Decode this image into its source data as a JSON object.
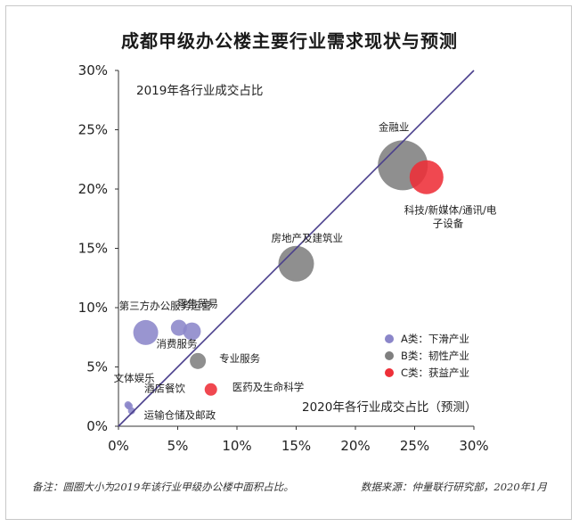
{
  "title": "成都甲级办公楼主要行业需求现状与预测",
  "chart_data": {
    "type": "scatter",
    "subtype": "bubble",
    "xlabel": "2020年各行业成交占比（预测）",
    "ylabel": "2019年各行业成交占比",
    "xlim": [
      0,
      30
    ],
    "ylim": [
      0,
      30
    ],
    "x_ticks": [
      "0%",
      "5%",
      "10%",
      "15%",
      "20%",
      "25%",
      "30%"
    ],
    "y_ticks": [
      "0%",
      "5%",
      "10%",
      "15%",
      "20%",
      "25%",
      "30%"
    ],
    "grid": false,
    "diagonal_line": true,
    "legend_position": "bottom-right",
    "series": [
      {
        "name": "A类：下滑产业",
        "color": "#8b86c9"
      },
      {
        "name": "B类：韧性产业",
        "color": "#7f7f7f"
      },
      {
        "name": "C类：获益产业",
        "color": "#ee2f38"
      }
    ],
    "points": [
      {
        "label": "金融业",
        "x": 24.0,
        "y": 22.0,
        "size": 28,
        "category": 1
      },
      {
        "label": "科技/新媒体/通讯/电子设备",
        "label_lines": [
          "科技/新媒体/通讯/电",
          "子设备"
        ],
        "x": 26.0,
        "y": 21.0,
        "size": 19,
        "category": 2
      },
      {
        "label": "房地产及建筑业",
        "x": 15.0,
        "y": 13.7,
        "size": 20,
        "category": 1
      },
      {
        "label": "第三方办公服务运营",
        "x": 2.3,
        "y": 7.9,
        "size": 14,
        "category": 0
      },
      {
        "label": "零售贸易",
        "x": 5.1,
        "y": 8.3,
        "size": 9,
        "category": 0
      },
      {
        "label": "消费服务",
        "x": 6.2,
        "y": 8.0,
        "size": 10,
        "category": 0
      },
      {
        "label": "专业服务",
        "x": 6.7,
        "y": 5.5,
        "size": 9,
        "category": 1
      },
      {
        "label": "医药及生命科学",
        "x": 7.8,
        "y": 3.1,
        "size": 7,
        "category": 2
      },
      {
        "label": "文体娱乐",
        "x": 0.8,
        "y": 1.8,
        "size": 4,
        "category": 0
      },
      {
        "label": "酒店餐饮",
        "x": 0.9,
        "y": 1.7,
        "size": 4,
        "category": 0
      },
      {
        "label": "运输仓储及邮政",
        "x": 1.1,
        "y": 1.3,
        "size": 4,
        "category": 0
      }
    ]
  },
  "footnote_left": "备注：圆圈大小为2019年该行业甲级办公楼中面积占比。",
  "footnote_right": "数据来源：仲量联行研究部，2020年1月"
}
